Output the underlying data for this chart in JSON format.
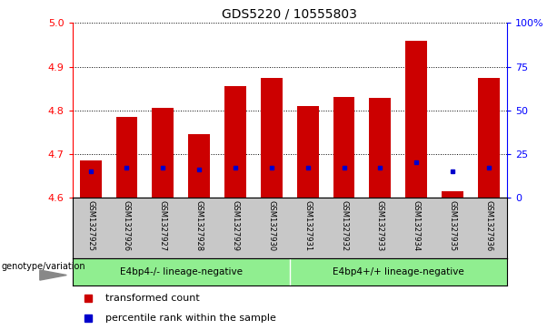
{
  "title": "GDS5220 / 10555803",
  "samples": [
    "GSM1327925",
    "GSM1327926",
    "GSM1327927",
    "GSM1327928",
    "GSM1327929",
    "GSM1327930",
    "GSM1327931",
    "GSM1327932",
    "GSM1327933",
    "GSM1327934",
    "GSM1327935",
    "GSM1327936"
  ],
  "transformed_count": [
    4.685,
    4.785,
    4.805,
    4.745,
    4.855,
    4.875,
    4.81,
    4.83,
    4.828,
    4.96,
    4.615,
    4.875
  ],
  "percentile_rank": [
    15,
    17,
    17,
    16,
    17,
    17,
    17,
    17,
    17,
    20,
    15,
    17
  ],
  "ylim_left": [
    4.6,
    5.0
  ],
  "ylim_right": [
    0,
    100
  ],
  "yticks_left": [
    4.6,
    4.7,
    4.8,
    4.9,
    5.0
  ],
  "yticks_right": [
    0,
    25,
    50,
    75,
    100
  ],
  "ytick_labels_right": [
    "0",
    "25",
    "50",
    "75",
    "100%"
  ],
  "bar_color": "#cc0000",
  "percentile_color": "#0000cc",
  "group1_label": "E4bp4-/- lineage-negative",
  "group2_label": "E4bp4+/+ lineage-negative",
  "group1_indices": [
    0,
    1,
    2,
    3,
    4,
    5
  ],
  "group2_indices": [
    6,
    7,
    8,
    9,
    10,
    11
  ],
  "group_bg_color": "#90ee90",
  "tick_area_bg": "#c8c8c8",
  "baseline": 4.6,
  "legend_red_label": "transformed count",
  "legend_blue_label": "percentile rank within the sample",
  "genotype_label": "genotype/variation",
  "title_fontsize": 10,
  "bar_width": 0.6
}
